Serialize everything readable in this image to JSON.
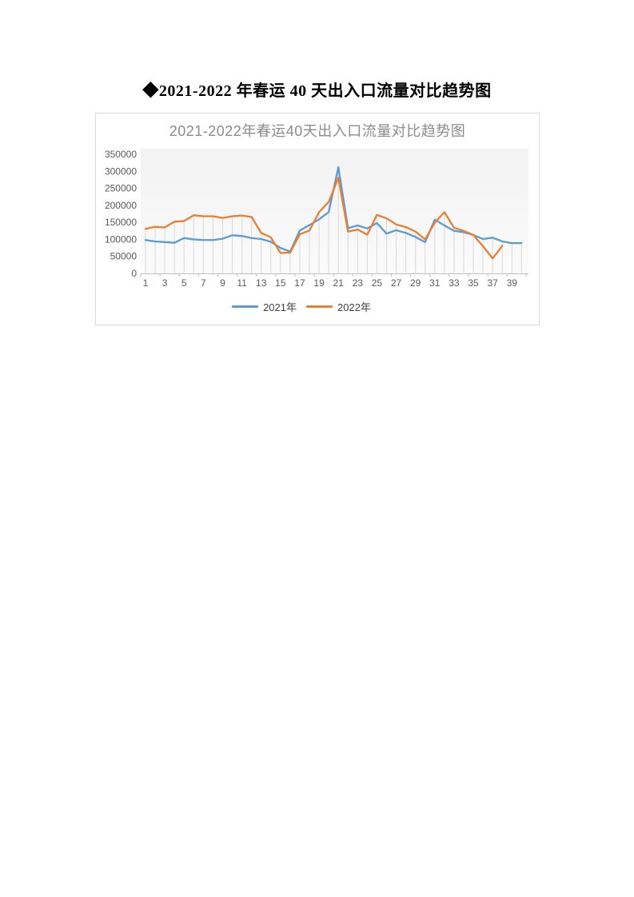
{
  "page": {
    "doc_title": "◆2021-2022 年春运 40 天出入口流量对比趋势图"
  },
  "colors": {
    "series_2021": "#5B9BD5",
    "series_2022": "#ED7D31",
    "chart_title": "#8c8c8c",
    "axis_label": "#595959",
    "drop_line": "#d9d9d9",
    "axis_line": "#bfbfbf",
    "chart_border": "#d9d9d9"
  },
  "chart_data": {
    "type": "line",
    "title": "2021-2022年春运40天出入口流量对比趋势图",
    "xlabel": "",
    "ylabel": "",
    "ylim": [
      0,
      350000
    ],
    "y_ticks": [
      0,
      50000,
      100000,
      150000,
      200000,
      250000,
      300000,
      350000
    ],
    "x_tick_labels": [
      1,
      3,
      5,
      7,
      9,
      11,
      13,
      15,
      17,
      19,
      21,
      23,
      25,
      27,
      29,
      31,
      33,
      35,
      37,
      39
    ],
    "x_categories": [
      1,
      2,
      3,
      4,
      5,
      6,
      7,
      8,
      9,
      10,
      11,
      12,
      13,
      14,
      15,
      16,
      17,
      18,
      19,
      20,
      21,
      22,
      23,
      24,
      25,
      26,
      27,
      28,
      29,
      30,
      31,
      32,
      33,
      34,
      35,
      36,
      37,
      38,
      39,
      40
    ],
    "grid": "vertical-drop-lines",
    "legend_position": "bottom",
    "series": [
      {
        "name": "2021年",
        "color": "#5B9BD5",
        "values": [
          98000,
          94000,
          92000,
          90000,
          104000,
          100000,
          98000,
          98000,
          102000,
          112000,
          110000,
          104000,
          101000,
          93000,
          75000,
          64000,
          126000,
          142000,
          159000,
          180000,
          312000,
          133000,
          141000,
          132000,
          148000,
          117000,
          127000,
          119000,
          107000,
          92000,
          158000,
          141000,
          125000,
          121000,
          113000,
          101000,
          105000,
          94000,
          89000,
          89000
        ]
      },
      {
        "name": "2022年",
        "color": "#ED7D31",
        "values": [
          131000,
          137000,
          135000,
          152000,
          154000,
          171000,
          168000,
          168000,
          163000,
          168000,
          170000,
          166000,
          119000,
          106000,
          60000,
          61000,
          115000,
          126000,
          180000,
          210000,
          281000,
          123000,
          129000,
          114000,
          172000,
          162000,
          144000,
          136000,
          123000,
          100000,
          149000,
          180000,
          134000,
          125000,
          113000,
          80000,
          44000,
          81000
        ]
      }
    ]
  }
}
